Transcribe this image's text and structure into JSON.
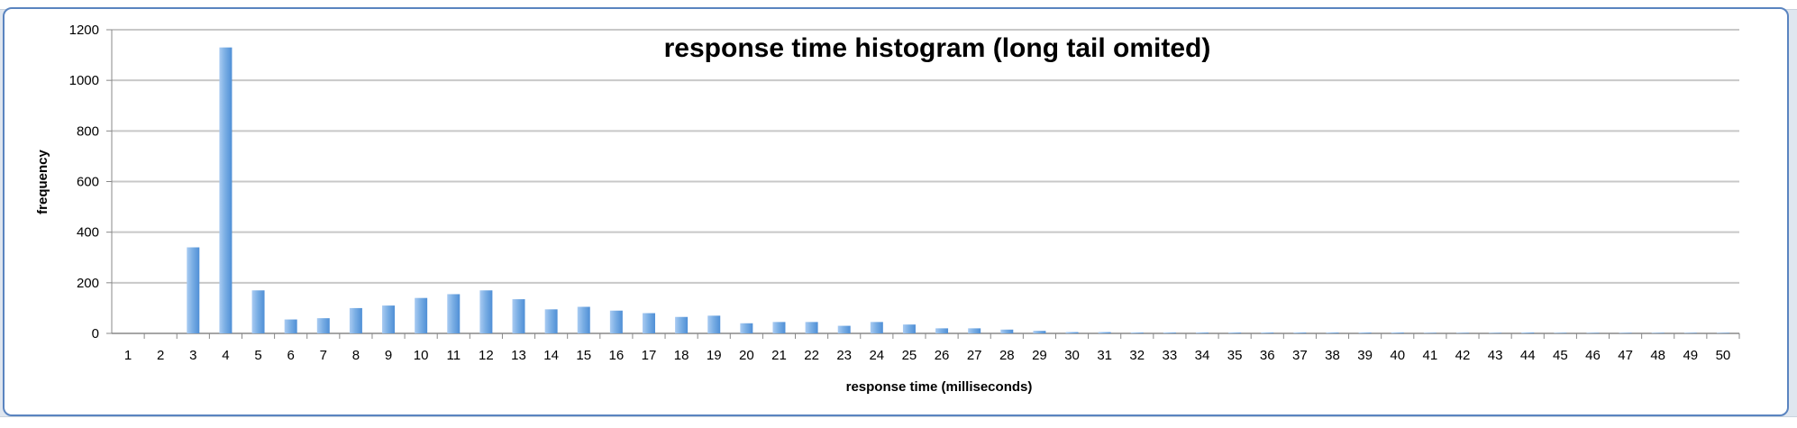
{
  "chart_data": {
    "type": "bar",
    "title": "response time histogram (long tail omited)",
    "xlabel": "response time (milliseconds)",
    "ylabel": "frequency",
    "ylim": [
      0,
      1200
    ],
    "yticks": [
      0,
      200,
      400,
      600,
      800,
      1000,
      1200
    ],
    "grid": true,
    "legend": "none",
    "bar_color": "#7aaee4",
    "categories": [
      "1",
      "2",
      "3",
      "4",
      "5",
      "6",
      "7",
      "8",
      "9",
      "10",
      "11",
      "12",
      "13",
      "14",
      "15",
      "16",
      "17",
      "18",
      "19",
      "20",
      "21",
      "22",
      "23",
      "24",
      "25",
      "26",
      "27",
      "28",
      "29",
      "30",
      "31",
      "32",
      "33",
      "34",
      "35",
      "36",
      "37",
      "38",
      "39",
      "40",
      "41",
      "42",
      "43",
      "44",
      "45",
      "46",
      "47",
      "48",
      "49",
      "50"
    ],
    "values": [
      0,
      0,
      340,
      1130,
      170,
      55,
      60,
      100,
      110,
      140,
      155,
      170,
      135,
      95,
      105,
      90,
      80,
      65,
      70,
      40,
      45,
      45,
      30,
      45,
      35,
      20,
      20,
      15,
      10,
      5,
      5,
      3,
      3,
      3,
      3,
      3,
      3,
      3,
      3,
      3,
      2,
      2,
      2,
      3,
      2,
      2,
      2,
      2,
      2,
      2
    ]
  }
}
